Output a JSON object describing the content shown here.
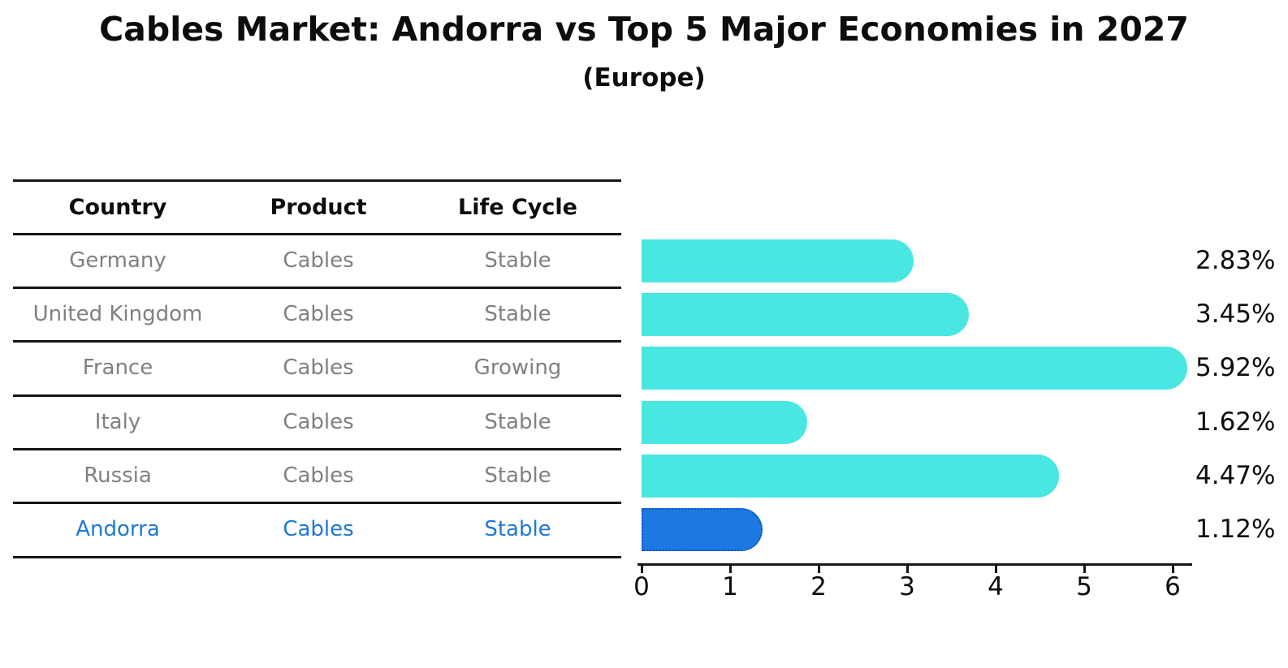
{
  "title": "Cables Market: Andorra vs Top 5 Major Economies in 2027",
  "subtitle": "(Europe)",
  "table": {
    "headers": [
      "Country",
      "Product",
      "Life Cycle"
    ],
    "rows": [
      {
        "country": "Germany",
        "product": "Cables",
        "life_cycle": "Stable",
        "highlight": false
      },
      {
        "country": "United Kingdom",
        "product": "Cables",
        "life_cycle": "Stable",
        "highlight": false
      },
      {
        "country": "France",
        "product": "Cables",
        "life_cycle": "Growing",
        "highlight": false
      },
      {
        "country": "Italy",
        "product": "Cables",
        "life_cycle": "Stable",
        "highlight": false
      },
      {
        "country": "Russia",
        "product": "Cables",
        "life_cycle": "Stable",
        "highlight": false
      },
      {
        "country": "Andorra",
        "product": "Cables",
        "life_cycle": "Stable",
        "highlight": true
      }
    ]
  },
  "chart_data": {
    "type": "bar",
    "orientation": "horizontal",
    "title": "Cables Market: Andorra vs Top 5 Major Economies in 2027",
    "subtitle": "(Europe)",
    "categories": [
      "Germany",
      "United Kingdom",
      "France",
      "Italy",
      "Russia",
      "Andorra"
    ],
    "values": [
      2.83,
      3.45,
      5.92,
      1.62,
      4.47,
      1.12
    ],
    "value_labels": [
      "2.83%",
      "3.45%",
      "5.92%",
      "1.62%",
      "4.47%",
      "1.12%"
    ],
    "x_ticks": [
      0,
      1,
      2,
      3,
      4,
      5,
      6
    ],
    "xlim": [
      0,
      6.2
    ],
    "grid": false,
    "legend": "none",
    "highlight_index": 5
  },
  "colors": {
    "bar": "#4AE6E2",
    "highlight_bar": "#1E78E2",
    "highlight_bar_border": "#0C56C6",
    "highlight_text": "#1E78D6",
    "table_text": "#808080",
    "axis_text": "#0d0d0d"
  }
}
